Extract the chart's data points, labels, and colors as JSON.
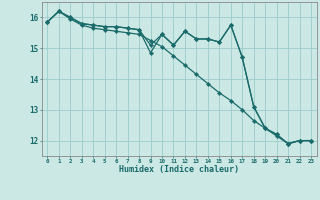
{
  "xlabel": "Humidex (Indice chaleur)",
  "background_color": "#cce8e4",
  "grid_color": "#99cccc",
  "line_color": "#1a6b6b",
  "x": [
    0,
    1,
    2,
    3,
    4,
    5,
    6,
    7,
    8,
    9,
    10,
    11,
    12,
    13,
    14,
    15,
    16,
    17,
    18,
    19,
    20,
    21,
    22,
    23
  ],
  "series1": [
    15.85,
    16.2,
    16.0,
    15.8,
    15.75,
    15.7,
    15.7,
    15.65,
    15.6,
    15.1,
    15.45,
    15.1,
    15.55,
    15.3,
    15.3,
    15.2,
    15.75,
    14.7,
    13.1,
    12.4,
    12.2,
    11.9,
    12.0,
    12.0
  ],
  "series2": [
    15.85,
    16.2,
    15.95,
    15.75,
    15.65,
    15.6,
    15.55,
    15.5,
    15.45,
    15.25,
    15.05,
    14.75,
    14.45,
    14.15,
    13.85,
    13.55,
    13.3,
    13.0,
    12.65,
    12.4,
    12.15,
    11.9,
    12.0,
    12.0
  ],
  "series3": [
    15.85,
    16.2,
    16.0,
    15.8,
    15.75,
    15.7,
    15.7,
    15.65,
    15.6,
    14.85,
    15.45,
    15.1,
    15.55,
    15.3,
    15.3,
    15.2,
    15.75,
    14.7,
    13.1,
    12.4,
    12.2,
    11.9,
    12.0,
    12.0
  ],
  "ylim": [
    11.5,
    16.5
  ],
  "yticks": [
    12,
    13,
    14,
    15,
    16
  ],
  "xlim": [
    -0.5,
    23.5
  ],
  "figsize": [
    3.2,
    2.0
  ],
  "dpi": 100
}
